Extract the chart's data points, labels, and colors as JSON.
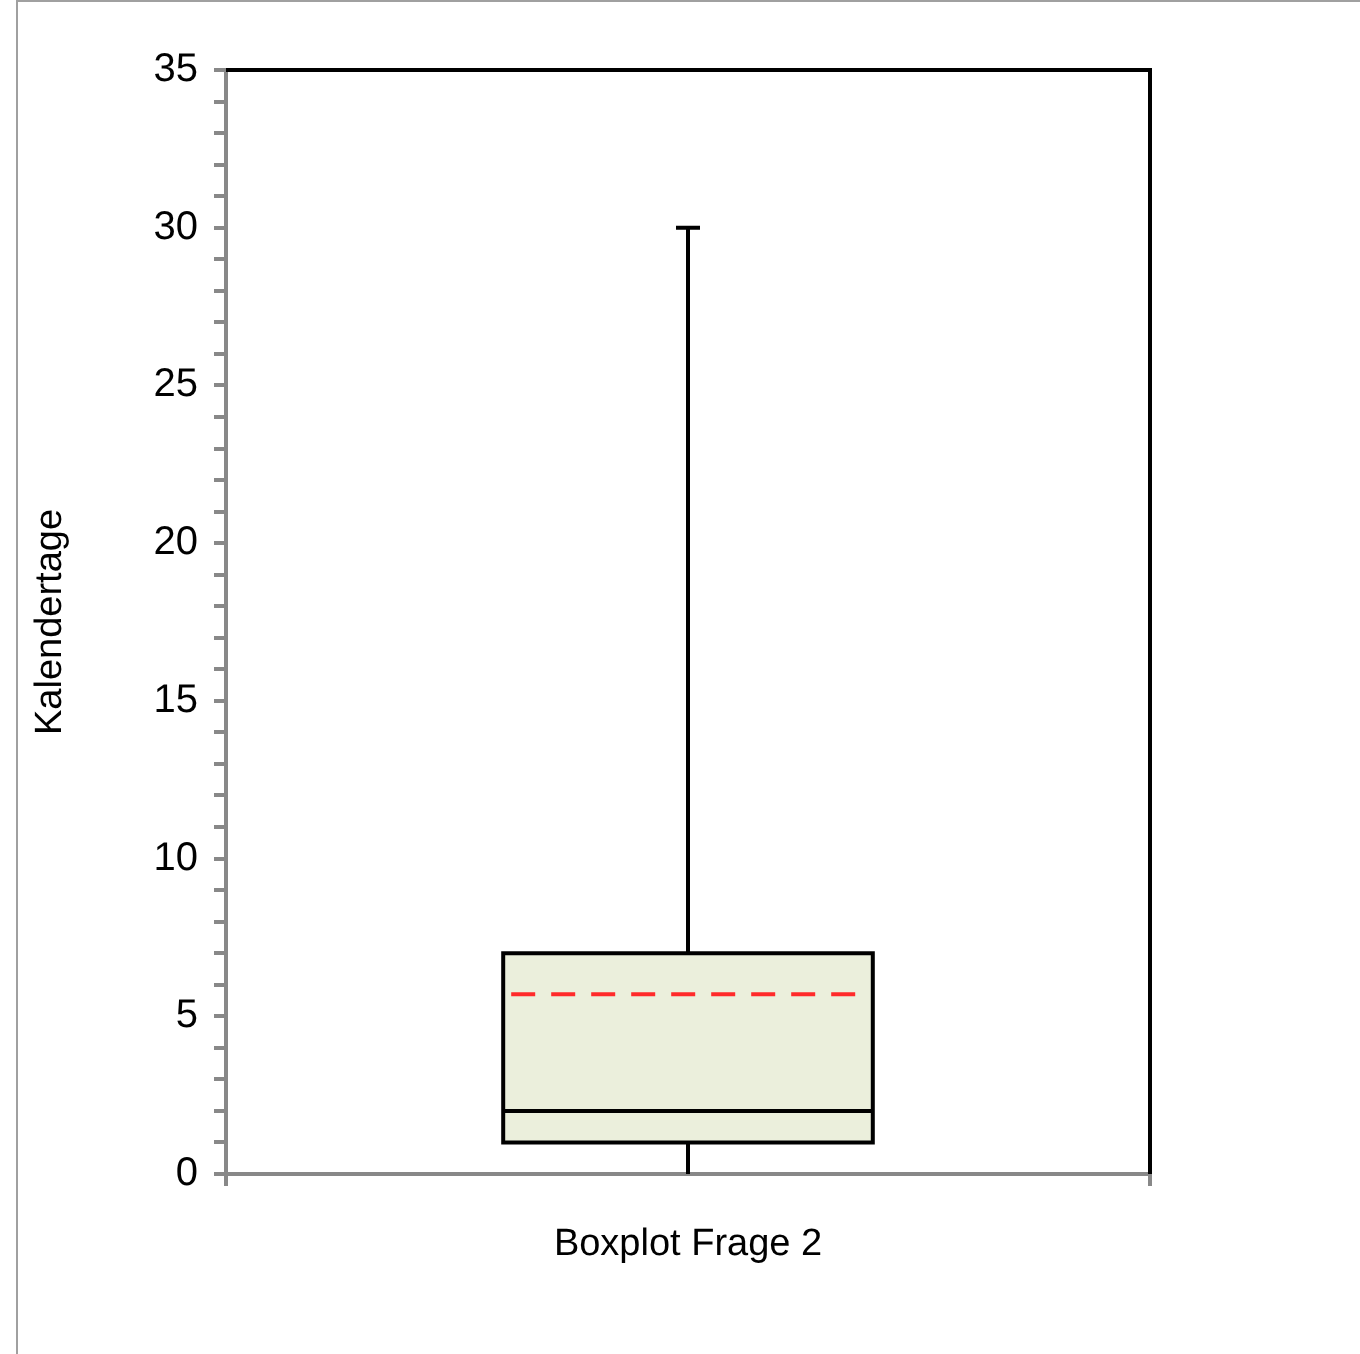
{
  "chart_data": {
    "type": "box",
    "ylabel": "Kalendertage",
    "categories": [
      "Boxplot Frage 2"
    ],
    "series": [
      {
        "color": "#ebefdc",
        "boxes": [
          {
            "low": 0,
            "q1": 1,
            "median": 2,
            "q3": 7,
            "high": 30,
            "mean": 5.7
          }
        ]
      }
    ],
    "ylim": [
      0,
      35
    ],
    "yticks": [
      0,
      {
        "value": 1,
        "label": null
      },
      {
        "value": 2,
        "label": null
      },
      {
        "value": 3,
        "label": null
      },
      {
        "value": 4,
        "label": null
      },
      5,
      {
        "value": 6,
        "label": null
      },
      {
        "value": 7,
        "label": null
      },
      {
        "value": 8,
        "label": null
      },
      {
        "value": 9,
        "label": null
      },
      10,
      {
        "value": 11,
        "label": null
      },
      {
        "value": 12,
        "label": null
      },
      {
        "value": 13,
        "label": null
      },
      {
        "value": 14,
        "label": null
      },
      15,
      {
        "value": 16,
        "label": null
      },
      {
        "value": 17,
        "label": null
      },
      {
        "value": 18,
        "label": null
      },
      {
        "value": 19,
        "label": null
      },
      20,
      {
        "value": 21,
        "label": null
      },
      {
        "value": 22,
        "label": null
      },
      {
        "value": 23,
        "label": null
      },
      {
        "value": 24,
        "label": null
      },
      25,
      {
        "value": 26,
        "label": null
      },
      {
        "value": 27,
        "label": null
      },
      {
        "value": 28,
        "label": null
      },
      {
        "value": 29,
        "label": null
      },
      30,
      {
        "value": 31,
        "label": null
      },
      {
        "value": 32,
        "label": null
      },
      {
        "value": 33,
        "label": null
      },
      {
        "value": 34,
        "label": null
      },
      35
    ],
    "grid": false,
    "legend": false
  }
}
